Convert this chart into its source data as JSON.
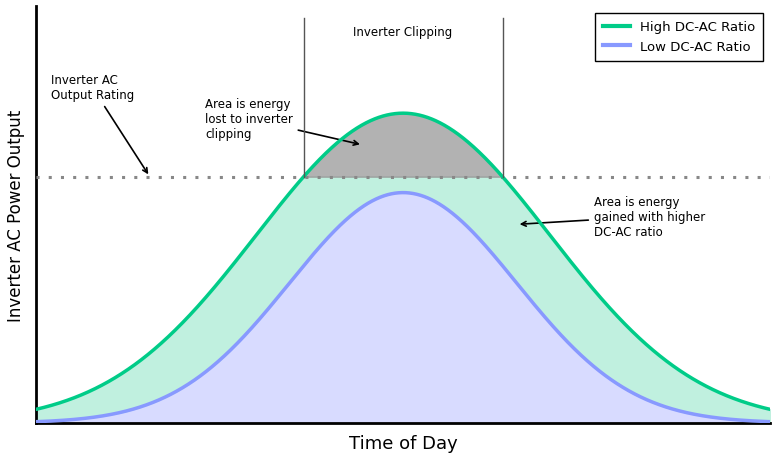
{
  "title": "",
  "xlabel": "Time of Day",
  "ylabel": "Inverter AC Power Output",
  "xlabel_fontsize": 13,
  "ylabel_fontsize": 12,
  "background_color": "#ffffff",
  "clip_level": 0.62,
  "green_curve_color": "#00cc88",
  "green_fill_color": "#c0f0df",
  "blue_curve_color": "#8899ff",
  "blue_fill_color": "#c8ccff",
  "gray_fill_color": "#999999",
  "dotted_line_color": "#888888",
  "legend_labels": [
    "High DC-AC Ratio",
    "Low DC-AC Ratio"
  ],
  "legend_colors": [
    "#00cc88",
    "#8899ff"
  ],
  "sigma_high": 0.2,
  "amplitude_high": 0.78,
  "sigma_low": 0.155,
  "amplitude_low": 0.58,
  "xlim": [
    0.0,
    1.0
  ],
  "ylim": [
    0.0,
    1.05
  ]
}
